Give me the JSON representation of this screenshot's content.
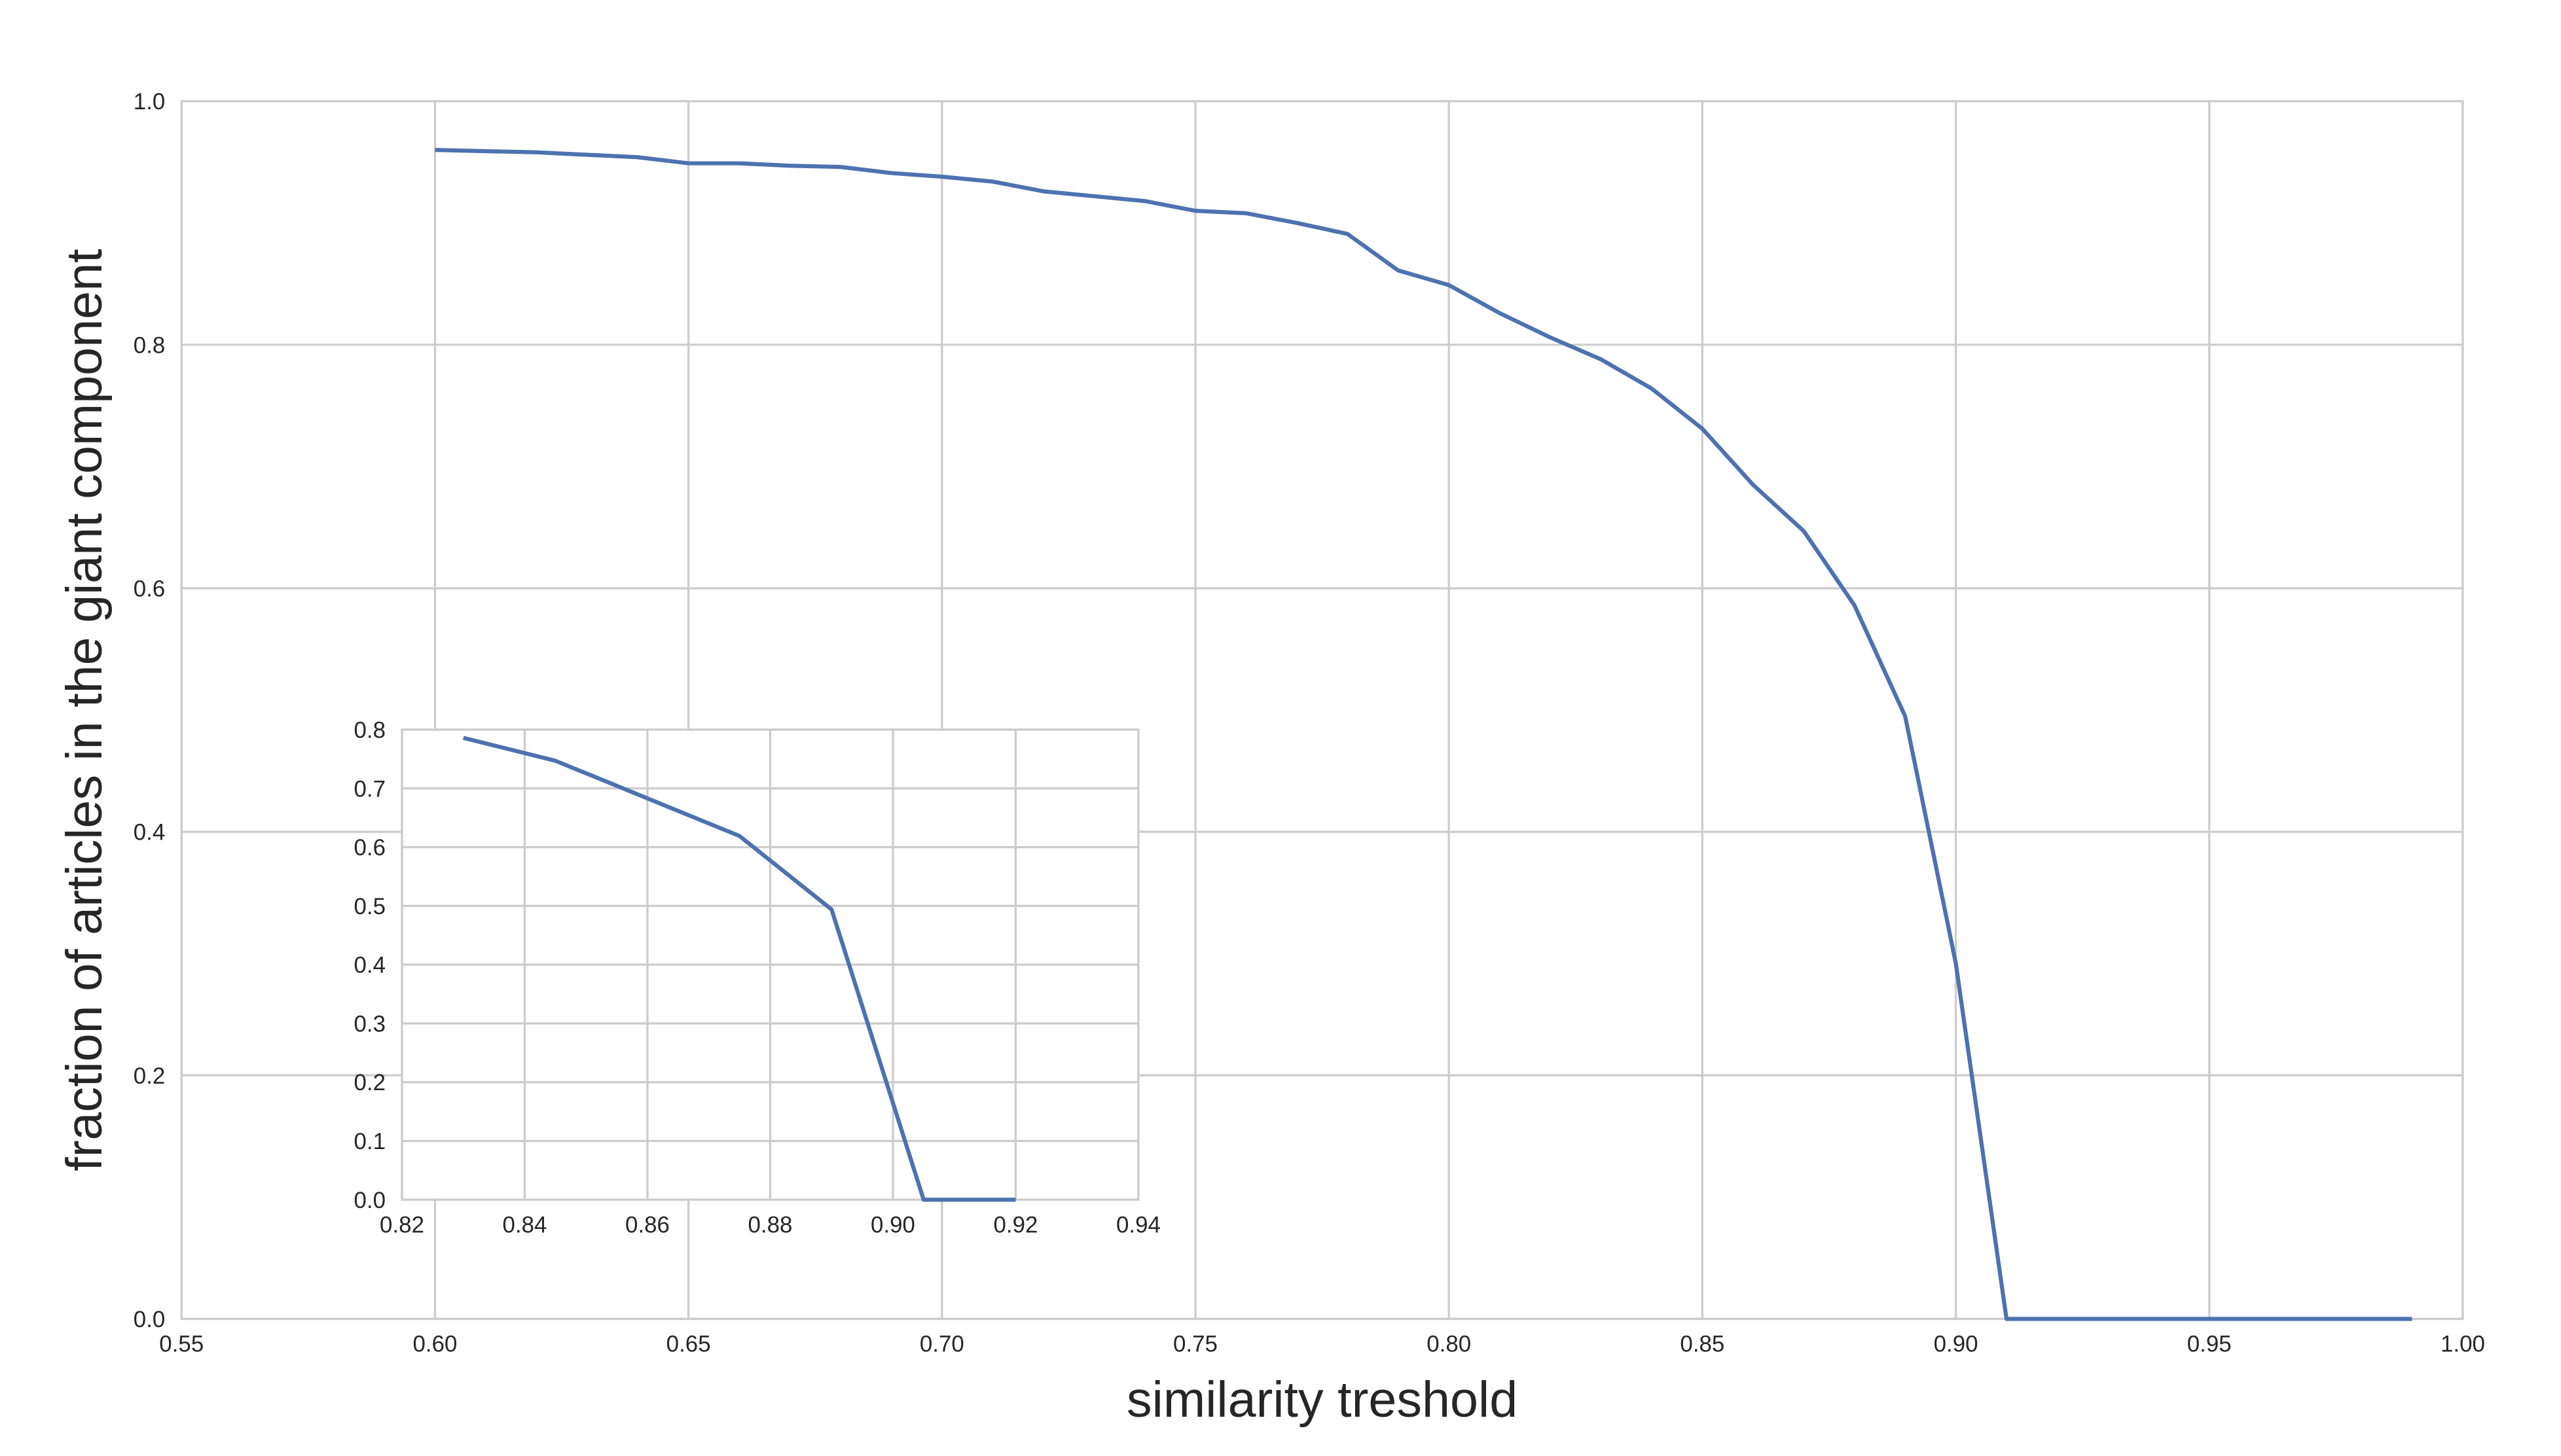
{
  "chart_data": [
    {
      "type": "line",
      "x_label": "similarity treshold",
      "y_label": "fraction of articles in the giant component",
      "x": [
        0.6,
        0.61,
        0.62,
        0.63,
        0.64,
        0.65,
        0.66,
        0.67,
        0.68,
        0.69,
        0.7,
        0.71,
        0.72,
        0.73,
        0.74,
        0.75,
        0.76,
        0.77,
        0.78,
        0.79,
        0.8,
        0.81,
        0.82,
        0.83,
        0.84,
        0.85,
        0.86,
        0.87,
        0.88,
        0.89,
        0.9,
        0.91,
        0.92,
        0.93,
        0.94,
        0.95,
        0.96,
        0.97,
        0.98,
        0.99
      ],
      "values": [
        0.96,
        0.959,
        0.958,
        0.956,
        0.954,
        0.949,
        0.949,
        0.947,
        0.946,
        0.941,
        0.938,
        0.934,
        0.926,
        0.922,
        0.918,
        0.91,
        0.908,
        0.9,
        0.891,
        0.861,
        0.849,
        0.826,
        0.806,
        0.788,
        0.764,
        0.731,
        0.685,
        0.647,
        0.586,
        0.495,
        0.292,
        0,
        0,
        0,
        0,
        0,
        0,
        0,
        0,
        0
      ],
      "color": "#4c72b0",
      "xlim": [
        0.55,
        1.0
      ],
      "ylim": [
        0.0,
        1.0
      ],
      "xticks": [
        0.55,
        {
          "value": 0.6,
          "label": "0.60"
        },
        0.65,
        {
          "value": 0.7,
          "label": "0.70"
        },
        0.75,
        {
          "value": 0.8,
          "label": "0.80"
        },
        0.85,
        {
          "value": 0.9,
          "label": "0.90"
        },
        0.95,
        {
          "value": 1.0,
          "label": "1.00"
        }
      ],
      "yticks": [
        {
          "value": 0.0,
          "label": "0.0"
        },
        0.2,
        0.4,
        0.6,
        0.8,
        {
          "value": 1.0,
          "label": "1.0"
        }
      ],
      "grid": true
    },
    {
      "type": "line",
      "x": [
        0.83,
        0.845,
        0.875,
        0.89,
        0.905,
        0.92
      ],
      "values": [
        0.786,
        0.747,
        0.619,
        0.494,
        0,
        0
      ],
      "color": "#4c72b0",
      "xlim": [
        0.82,
        0.94
      ],
      "ylim": [
        0.0,
        0.8
      ],
      "xticks": [
        0.82,
        0.84,
        0.86,
        0.88,
        {
          "value": 0.9,
          "label": "0.90"
        },
        0.92,
        0.94
      ],
      "yticks": [
        {
          "value": 0.0,
          "label": "0.0"
        },
        0.1,
        0.2,
        0.3,
        0.4,
        0.5,
        0.6,
        0.7,
        0.8
      ],
      "grid": true
    }
  ]
}
